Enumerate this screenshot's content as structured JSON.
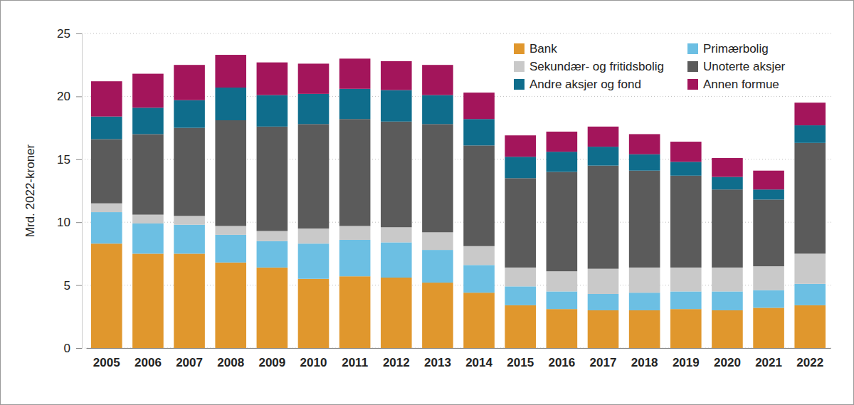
{
  "chart_data": {
    "type": "bar",
    "stacked": true,
    "grid": true,
    "legend": "top-right",
    "y_label": "Mrd. 2022-kroner",
    "categories": [
      "2005",
      "2006",
      "2007",
      "2008",
      "2009",
      "2010",
      "2011",
      "2012",
      "2013",
      "2014",
      "2015",
      "2016",
      "2017",
      "2018",
      "2019",
      "2020",
      "2021",
      "2022"
    ],
    "ylim": [
      0,
      25
    ],
    "yticks": [
      0,
      5,
      10,
      15,
      20,
      25
    ],
    "series": [
      {
        "name": "Bank",
        "color": "#e0972d",
        "values": [
          8.3,
          7.5,
          7.5,
          6.8,
          6.4,
          5.5,
          5.7,
          5.6,
          5.2,
          4.4,
          3.4,
          3.1,
          3.0,
          3.0,
          3.1,
          3.0,
          3.2,
          3.4
        ]
      },
      {
        "name": "Primærbolig",
        "color": "#6cbfe3",
        "values": [
          2.5,
          2.4,
          2.3,
          2.2,
          2.1,
          2.8,
          2.9,
          2.8,
          2.6,
          2.2,
          1.5,
          1.4,
          1.3,
          1.4,
          1.4,
          1.5,
          1.4,
          1.7
        ]
      },
      {
        "name": "Sekundær- og fritidsbolig",
        "color": "#c9c9c9",
        "values": [
          0.7,
          0.7,
          0.7,
          0.7,
          0.8,
          1.2,
          1.1,
          1.2,
          1.4,
          1.5,
          1.5,
          1.6,
          2.0,
          2.0,
          1.9,
          1.9,
          1.9,
          2.4
        ]
      },
      {
        "name": "Unoterte aksjer",
        "color": "#5b5b5b",
        "values": [
          5.1,
          6.4,
          7.0,
          8.4,
          8.3,
          8.3,
          8.5,
          8.4,
          8.6,
          8.0,
          7.1,
          7.9,
          8.2,
          7.7,
          7.3,
          6.2,
          5.3,
          8.8
        ]
      },
      {
        "name": "Andre aksjer og fond",
        "color": "#0f6d8c",
        "values": [
          1.8,
          2.1,
          2.2,
          2.6,
          2.5,
          2.4,
          2.4,
          2.5,
          2.3,
          2.1,
          1.7,
          1.6,
          1.5,
          1.3,
          1.1,
          1.0,
          0.8,
          1.4
        ]
      },
      {
        "name": "Annen formue",
        "color": "#a3155b",
        "values": [
          2.8,
          2.7,
          2.8,
          2.6,
          2.6,
          2.4,
          2.4,
          2.3,
          2.4,
          2.1,
          1.7,
          1.6,
          1.6,
          1.6,
          1.6,
          1.5,
          1.5,
          1.8
        ]
      }
    ]
  }
}
